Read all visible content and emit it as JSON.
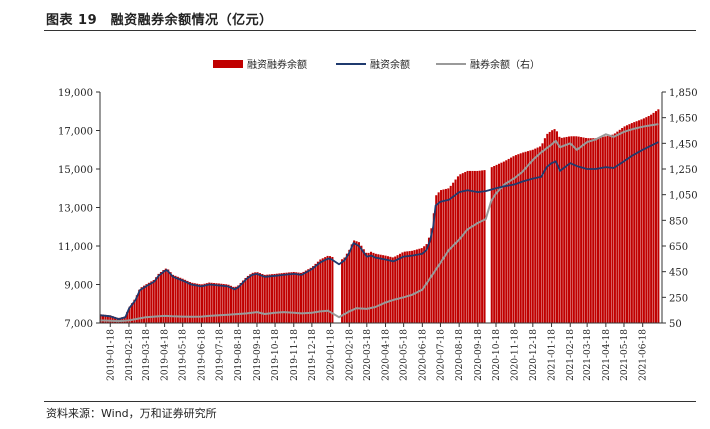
{
  "figure": {
    "title": "图表 19　融资融券余额情况（亿元）",
    "source": "资料来源：Wind，万和证券研究所"
  },
  "colors": {
    "bars": "#c00000",
    "financing_line": "#1f3a6e",
    "securities_line": "#9a9a9a",
    "axis": "#333333"
  },
  "chart_data": {
    "type": "bar+line",
    "legend_position": "top-right",
    "grid": false,
    "x_dates": [
      "2019-01-18",
      "2019-02-18",
      "2019-03-18",
      "2019-04-18",
      "2019-05-18",
      "2019-06-18",
      "2019-07-18",
      "2019-08-18",
      "2019-09-18",
      "2019-10-18",
      "2019-11-18",
      "2019-12-18",
      "2020-01-18",
      "2020-02-18",
      "2020-03-18",
      "2020-04-18",
      "2020-05-18",
      "2020-06-18",
      "2020-07-18",
      "2020-08-18",
      "2020-09-18",
      "2020-10-18",
      "2020-11-18",
      "2020-12-18",
      "2021-01-18",
      "2021-02-18",
      "2021-03-18",
      "2021-04-18",
      "2021-05-18",
      "2021-06-18"
    ],
    "x_range": [
      "2019-01-01",
      "2021-07-20"
    ],
    "y_left": {
      "min": 7000,
      "max": 19000,
      "ticks": [
        "7,000",
        "9,000",
        "11,000",
        "13,000",
        "15,000",
        "17,000",
        "19,000"
      ],
      "tick_values": [
        7000,
        9000,
        11000,
        13000,
        15000,
        17000,
        19000
      ]
    },
    "y_right": {
      "min": 50,
      "max": 1850,
      "ticks": [
        "50",
        "250",
        "450",
        "650",
        "850",
        "1,050",
        "1,250",
        "1,450",
        "1,650",
        "1,850"
      ],
      "tick_values": [
        50,
        250,
        450,
        650,
        850,
        1050,
        1250,
        1450,
        1650,
        1850
      ]
    },
    "series": [
      {
        "name": "融资融券余额",
        "type": "bar",
        "axis": "left",
        "points": [
          [
            "2019-01-02",
            7450
          ],
          [
            "2019-01-18",
            7400
          ],
          [
            "2019-02-01",
            7250
          ],
          [
            "2019-02-12",
            7350
          ],
          [
            "2019-02-18",
            7800
          ],
          [
            "2019-03-01",
            8300
          ],
          [
            "2019-03-08",
            8800
          ],
          [
            "2019-03-18",
            9000
          ],
          [
            "2019-04-01",
            9250
          ],
          [
            "2019-04-08",
            9550
          ],
          [
            "2019-04-18",
            9800
          ],
          [
            "2019-04-22",
            9850
          ],
          [
            "2019-05-02",
            9500
          ],
          [
            "2019-05-18",
            9300
          ],
          [
            "2019-06-01",
            9100
          ],
          [
            "2019-06-18",
            9000
          ],
          [
            "2019-07-01",
            9100
          ],
          [
            "2019-07-18",
            9050
          ],
          [
            "2019-08-01",
            9000
          ],
          [
            "2019-08-12",
            8850
          ],
          [
            "2019-08-18",
            8950
          ],
          [
            "2019-09-01",
            9400
          ],
          [
            "2019-09-10",
            9600
          ],
          [
            "2019-09-18",
            9650
          ],
          [
            "2019-10-01",
            9500
          ],
          [
            "2019-10-18",
            9550
          ],
          [
            "2019-11-01",
            9600
          ],
          [
            "2019-11-18",
            9650
          ],
          [
            "2019-12-01",
            9600
          ],
          [
            "2019-12-18",
            9900
          ],
          [
            "2020-01-01",
            10300
          ],
          [
            "2020-01-14",
            10500
          ],
          [
            "2020-01-20",
            10450
          ],
          [
            "2020-02-01",
            10200
          ],
          [
            "2020-02-10",
            10400
          ],
          [
            "2020-02-18",
            10800
          ],
          [
            "2020-02-25",
            11300
          ],
          [
            "2020-03-05",
            11200
          ],
          [
            "2020-03-18",
            10600
          ],
          [
            "2020-03-25",
            10700
          ],
          [
            "2020-04-01",
            10600
          ],
          [
            "2020-04-18",
            10500
          ],
          [
            "2020-05-01",
            10400
          ],
          [
            "2020-05-18",
            10700
          ],
          [
            "2020-06-01",
            10750
          ],
          [
            "2020-06-18",
            10900
          ],
          [
            "2020-06-25",
            11100
          ],
          [
            "2020-07-01",
            11600
          ],
          [
            "2020-07-06",
            12400
          ],
          [
            "2020-07-10",
            13600
          ],
          [
            "2020-07-18",
            13900
          ],
          [
            "2020-08-01",
            14000
          ],
          [
            "2020-08-18",
            14700
          ],
          [
            "2020-09-01",
            14900
          ],
          [
            "2020-09-18",
            14900
          ],
          [
            "2020-10-01",
            14950
          ],
          [
            "2020-10-18",
            15200
          ],
          [
            "2020-11-01",
            15400
          ],
          [
            "2020-11-18",
            15700
          ],
          [
            "2020-12-01",
            15850
          ],
          [
            "2020-12-18",
            16000
          ],
          [
            "2021-01-01",
            16200
          ],
          [
            "2021-01-10",
            16800
          ],
          [
            "2021-01-18",
            17000
          ],
          [
            "2021-01-25",
            17100
          ],
          [
            "2021-02-01",
            16600
          ],
          [
            "2021-02-18",
            16700
          ],
          [
            "2021-03-01",
            16700
          ],
          [
            "2021-03-18",
            16600
          ],
          [
            "2021-04-01",
            16600
          ],
          [
            "2021-04-18",
            16700
          ],
          [
            "2021-05-01",
            16800
          ],
          [
            "2021-05-18",
            17200
          ],
          [
            "2021-06-01",
            17400
          ],
          [
            "2021-06-18",
            17600
          ],
          [
            "2021-07-01",
            17800
          ],
          [
            "2021-07-14",
            18100
          ]
        ]
      },
      {
        "name": "融资余额",
        "type": "line",
        "axis": "left",
        "points": [
          [
            "2019-01-02",
            7400
          ],
          [
            "2019-01-18",
            7350
          ],
          [
            "2019-02-01",
            7200
          ],
          [
            "2019-02-12",
            7300
          ],
          [
            "2019-02-18",
            7750
          ],
          [
            "2019-03-01",
            8200
          ],
          [
            "2019-03-08",
            8700
          ],
          [
            "2019-03-18",
            8900
          ],
          [
            "2019-04-01",
            9150
          ],
          [
            "2019-04-08",
            9450
          ],
          [
            "2019-04-18",
            9700
          ],
          [
            "2019-04-22",
            9750
          ],
          [
            "2019-05-02",
            9400
          ],
          [
            "2019-05-18",
            9200
          ],
          [
            "2019-06-01",
            9000
          ],
          [
            "2019-06-18",
            8900
          ],
          [
            "2019-07-01",
            9000
          ],
          [
            "2019-07-18",
            8950
          ],
          [
            "2019-08-01",
            8900
          ],
          [
            "2019-08-12",
            8750
          ],
          [
            "2019-08-18",
            8850
          ],
          [
            "2019-09-01",
            9300
          ],
          [
            "2019-09-10",
            9500
          ],
          [
            "2019-09-18",
            9550
          ],
          [
            "2019-10-01",
            9400
          ],
          [
            "2019-10-18",
            9450
          ],
          [
            "2019-11-01",
            9500
          ],
          [
            "2019-11-18",
            9550
          ],
          [
            "2019-12-01",
            9500
          ],
          [
            "2019-12-18",
            9800
          ],
          [
            "2020-01-01",
            10150
          ],
          [
            "2020-01-14",
            10350
          ],
          [
            "2020-01-20",
            10300
          ],
          [
            "2020-02-01",
            10050
          ],
          [
            "2020-02-10",
            10250
          ],
          [
            "2020-02-18",
            10650
          ],
          [
            "2020-02-25",
            11150
          ],
          [
            "2020-03-05",
            11000
          ],
          [
            "2020-03-18",
            10450
          ],
          [
            "2020-03-25",
            10500
          ],
          [
            "2020-04-01",
            10400
          ],
          [
            "2020-04-18",
            10300
          ],
          [
            "2020-05-01",
            10200
          ],
          [
            "2020-05-18",
            10450
          ],
          [
            "2020-06-01",
            10500
          ],
          [
            "2020-06-18",
            10600
          ],
          [
            "2020-06-25",
            10800
          ],
          [
            "2020-07-01",
            11300
          ],
          [
            "2020-07-06",
            12000
          ],
          [
            "2020-07-10",
            13100
          ],
          [
            "2020-07-18",
            13300
          ],
          [
            "2020-08-01",
            13400
          ],
          [
            "2020-08-18",
            13800
          ],
          [
            "2020-09-01",
            13900
          ],
          [
            "2020-09-18",
            13800
          ],
          [
            "2020-10-01",
            13850
          ],
          [
            "2020-10-18",
            14000
          ],
          [
            "2020-11-01",
            14100
          ],
          [
            "2020-11-18",
            14200
          ],
          [
            "2020-12-01",
            14350
          ],
          [
            "2020-12-18",
            14500
          ],
          [
            "2021-01-01",
            14600
          ],
          [
            "2021-01-10",
            15100
          ],
          [
            "2021-01-18",
            15300
          ],
          [
            "2021-01-25",
            15400
          ],
          [
            "2021-02-01",
            14900
          ],
          [
            "2021-02-18",
            15300
          ],
          [
            "2021-03-01",
            15150
          ],
          [
            "2021-03-18",
            15000
          ],
          [
            "2021-04-01",
            15000
          ],
          [
            "2021-04-18",
            15100
          ],
          [
            "2021-05-01",
            15050
          ],
          [
            "2021-05-18",
            15400
          ],
          [
            "2021-06-01",
            15700
          ],
          [
            "2021-06-18",
            16000
          ],
          [
            "2021-07-01",
            16200
          ],
          [
            "2021-07-14",
            16400
          ]
        ]
      },
      {
        "name": "融券余额（右）",
        "type": "line",
        "axis": "right",
        "points": [
          [
            "2019-01-02",
            70
          ],
          [
            "2019-01-18",
            68
          ],
          [
            "2019-02-01",
            65
          ],
          [
            "2019-02-18",
            70
          ],
          [
            "2019-03-01",
            80
          ],
          [
            "2019-03-18",
            95
          ],
          [
            "2019-04-01",
            100
          ],
          [
            "2019-04-18",
            105
          ],
          [
            "2019-05-01",
            102
          ],
          [
            "2019-05-18",
            100
          ],
          [
            "2019-06-01",
            98
          ],
          [
            "2019-06-18",
            100
          ],
          [
            "2019-07-01",
            105
          ],
          [
            "2019-07-18",
            110
          ],
          [
            "2019-08-01",
            115
          ],
          [
            "2019-08-18",
            120
          ],
          [
            "2019-09-01",
            125
          ],
          [
            "2019-09-18",
            135
          ],
          [
            "2019-10-01",
            120
          ],
          [
            "2019-10-18",
            130
          ],
          [
            "2019-11-01",
            135
          ],
          [
            "2019-11-18",
            130
          ],
          [
            "2019-12-01",
            125
          ],
          [
            "2019-12-18",
            130
          ],
          [
            "2020-01-01",
            140
          ],
          [
            "2020-01-14",
            145
          ],
          [
            "2020-02-01",
            95
          ],
          [
            "2020-02-18",
            140
          ],
          [
            "2020-03-01",
            165
          ],
          [
            "2020-03-18",
            160
          ],
          [
            "2020-04-01",
            175
          ],
          [
            "2020-04-18",
            210
          ],
          [
            "2020-05-01",
            230
          ],
          [
            "2020-05-18",
            250
          ],
          [
            "2020-06-01",
            270
          ],
          [
            "2020-06-18",
            310
          ],
          [
            "2020-07-01",
            400
          ],
          [
            "2020-07-18",
            520
          ],
          [
            "2020-08-01",
            620
          ],
          [
            "2020-08-18",
            700
          ],
          [
            "2020-09-01",
            780
          ],
          [
            "2020-09-18",
            830
          ],
          [
            "2020-10-01",
            860
          ],
          [
            "2020-10-10",
            1000
          ],
          [
            "2020-10-18",
            1060
          ],
          [
            "2020-11-01",
            1130
          ],
          [
            "2020-11-18",
            1180
          ],
          [
            "2020-12-01",
            1230
          ],
          [
            "2020-12-18",
            1320
          ],
          [
            "2021-01-01",
            1380
          ],
          [
            "2021-01-18",
            1440
          ],
          [
            "2021-01-25",
            1470
          ],
          [
            "2021-02-01",
            1420
          ],
          [
            "2021-02-18",
            1450
          ],
          [
            "2021-03-01",
            1400
          ],
          [
            "2021-03-18",
            1460
          ],
          [
            "2021-04-01",
            1480
          ],
          [
            "2021-04-18",
            1520
          ],
          [
            "2021-05-01",
            1500
          ],
          [
            "2021-05-18",
            1540
          ],
          [
            "2021-06-01",
            1560
          ],
          [
            "2021-06-18",
            1580
          ],
          [
            "2021-07-01",
            1590
          ],
          [
            "2021-07-14",
            1600
          ]
        ]
      }
    ]
  }
}
